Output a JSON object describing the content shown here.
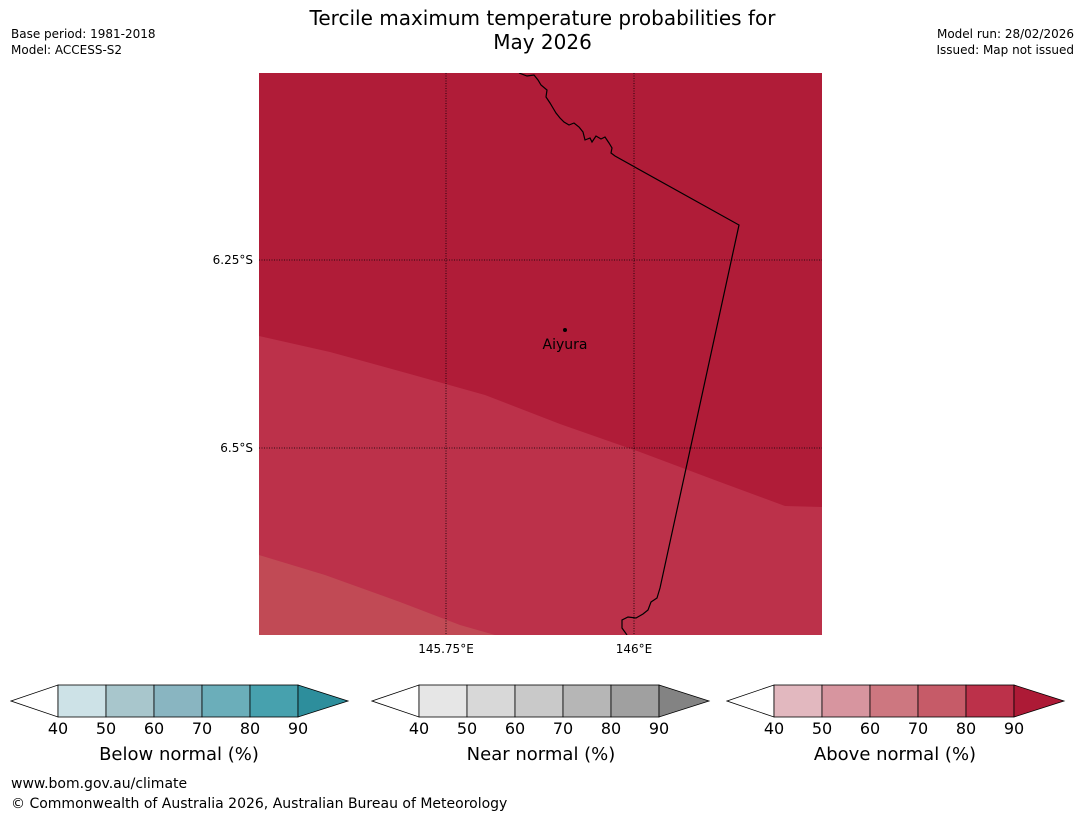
{
  "title": {
    "line1": "Tercile maximum temperature probabilities for",
    "line2": "May 2026"
  },
  "meta": {
    "base_period": "Base period: 1981-2018",
    "model": "Model: ACCESS-S2",
    "model_run": "Model run: 28/02/2026",
    "issued": "Issued: Map not issued"
  },
  "map": {
    "lat_labels": [
      "6.25°S",
      "6.5°S"
    ],
    "lon_labels": [
      "145.75°E",
      "146°E"
    ],
    "place": "Aiyura",
    "colors": {
      "above_90": "#b01c38",
      "above_80": "#bc314a",
      "above_70": "#c14a55",
      "border": "#000000"
    }
  },
  "legend": {
    "below": {
      "label": "Below normal (%)",
      "ticks": [
        "40",
        "50",
        "60",
        "70",
        "80",
        "90"
      ],
      "colors": [
        "#ffffff",
        "#cde2e7",
        "#a8c6cc",
        "#89b5c1",
        "#6baeba",
        "#47a1ae",
        "#2d8e9c"
      ]
    },
    "near": {
      "label": "Near normal (%)",
      "ticks": [
        "40",
        "50",
        "60",
        "70",
        "80",
        "90"
      ],
      "colors": [
        "#ffffff",
        "#e6e6e6",
        "#d8d8d8",
        "#c9c9c9",
        "#b6b6b6",
        "#a0a0a0",
        "#838383"
      ]
    },
    "above": {
      "label": "Above normal (%)",
      "ticks": [
        "40",
        "50",
        "60",
        "70",
        "80",
        "90"
      ],
      "colors": [
        "#ffffff",
        "#e2b8bf",
        "#d7959f",
        "#cd7780",
        "#c65b68",
        "#bc314a",
        "#ad1a36"
      ]
    }
  },
  "footer": {
    "url": "www.bom.gov.au/climate",
    "copyright": "© Commonwealth of Australia 2026, Australian Bureau of Meteorology"
  }
}
